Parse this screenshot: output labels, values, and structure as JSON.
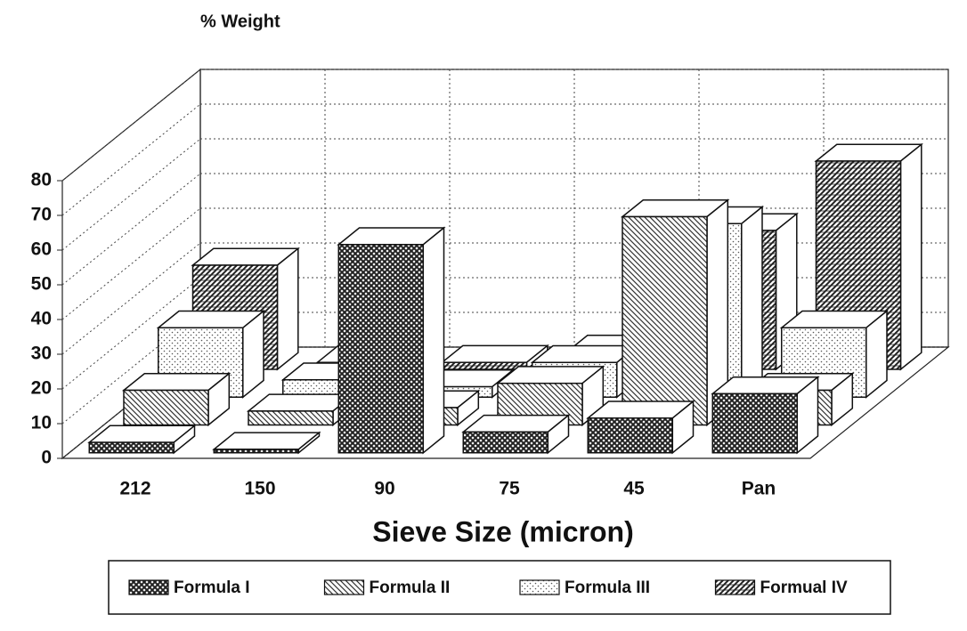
{
  "chart_data": {
    "type": "bar3d",
    "title": "% Weight",
    "x_label": "Sieve Size (micron)",
    "categories": [
      "212",
      "150",
      "90",
      "75",
      "45",
      "Pan"
    ],
    "series": [
      {
        "name": "Formula I",
        "color": "#222222",
        "values": [
          3,
          1,
          60,
          6,
          10,
          17
        ]
      },
      {
        "name": "Formula II",
        "color": "#333333",
        "values": [
          10,
          4,
          5,
          12,
          60,
          10
        ]
      },
      {
        "name": "Formula III",
        "color": "#555555",
        "values": [
          20,
          5,
          3,
          10,
          50,
          20
        ]
      },
      {
        "name": "Formual IV",
        "color": "#222222",
        "values": [
          30,
          2,
          2,
          5,
          40,
          60
        ]
      }
    ],
    "ylim": [
      0,
      80
    ],
    "yticks": [
      0,
      10,
      20,
      30,
      40,
      50,
      60,
      70,
      80
    ],
    "grid": true
  }
}
